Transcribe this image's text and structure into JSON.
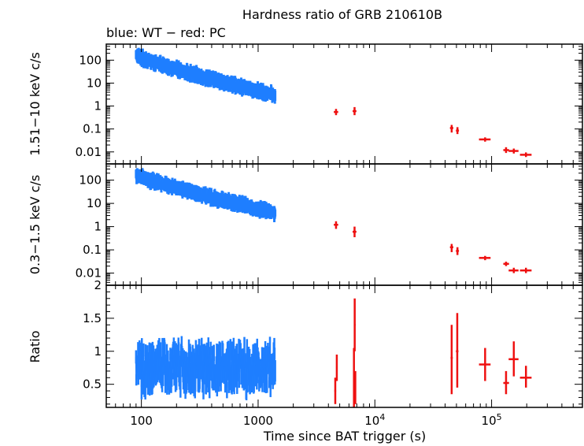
{
  "title": "Hardness ratio of GRB 210610B",
  "subtitle": "blue: WT − red: PC",
  "colors": {
    "wt": "#1f7fff",
    "pc": "#ee1111",
    "axis": "#000000"
  },
  "chart_data": [
    {
      "type": "scatter",
      "panel": "hard",
      "ylabel": "1.51−10 keV c/s",
      "yscale": "log",
      "ylim": [
        0.003,
        500
      ],
      "xscale": "log",
      "xlim": [
        50,
        600000
      ],
      "y_ticks": [
        "100",
        "10",
        "1",
        "0.1",
        "0.01"
      ],
      "wt": {
        "t_start": 90,
        "t_end": 1400,
        "y_start": 160,
        "y_end": 3,
        "scatter_frac": 0.35
      },
      "pc_points": [
        {
          "x": 4650,
          "xerr": [
            4450,
            4850
          ],
          "y": 0.55,
          "yerr": [
            0.4,
            0.75
          ]
        },
        {
          "x": 6700,
          "xerr": [
            6450,
            6950
          ],
          "y": 0.6,
          "yerr": [
            0.4,
            0.9
          ]
        },
        {
          "x": 45500,
          "xerr": [
            44000,
            47000
          ],
          "y": 0.11,
          "yerr": [
            0.07,
            0.15
          ]
        },
        {
          "x": 51000,
          "xerr": [
            49500,
            52500
          ],
          "y": 0.085,
          "yerr": [
            0.06,
            0.12
          ]
        },
        {
          "x": 88000,
          "xerr": [
            78000,
            98000
          ],
          "y": 0.035,
          "yerr": [
            0.028,
            0.043
          ]
        },
        {
          "x": 133000,
          "xerr": [
            126000,
            141000
          ],
          "y": 0.012,
          "yerr": [
            0.009,
            0.016
          ]
        },
        {
          "x": 155000,
          "xerr": [
            140000,
            170000
          ],
          "y": 0.011,
          "yerr": [
            0.0085,
            0.014
          ]
        },
        {
          "x": 197000,
          "xerr": [
            175000,
            220000
          ],
          "y": 0.0075,
          "yerr": [
            0.006,
            0.0095
          ]
        }
      ]
    },
    {
      "type": "scatter",
      "panel": "soft",
      "ylabel": "0.3−1.5 keV c/s",
      "yscale": "log",
      "ylim": [
        0.003,
        500
      ],
      "xscale": "log",
      "xlim": [
        50,
        600000
      ],
      "y_ticks": [
        "100",
        "10",
        "1",
        "0.1",
        "0.01"
      ],
      "wt": {
        "t_start": 90,
        "t_end": 1400,
        "y_start": 170,
        "y_end": 4,
        "scatter_frac": 0.35
      },
      "pc_points": [
        {
          "x": 4650,
          "xerr": [
            4450,
            4850
          ],
          "y": 1.2,
          "yerr": [
            0.8,
            1.7
          ]
        },
        {
          "x": 6700,
          "xerr": [
            6450,
            6950
          ],
          "y": 0.6,
          "yerr": [
            0.35,
            1.0
          ]
        },
        {
          "x": 45500,
          "xerr": [
            44000,
            47000
          ],
          "y": 0.13,
          "yerr": [
            0.08,
            0.18
          ]
        },
        {
          "x": 51000,
          "xerr": [
            49500,
            52500
          ],
          "y": 0.09,
          "yerr": [
            0.06,
            0.13
          ]
        },
        {
          "x": 88000,
          "xerr": [
            78000,
            98000
          ],
          "y": 0.045,
          "yerr": [
            0.036,
            0.055
          ]
        },
        {
          "x": 133000,
          "xerr": [
            126000,
            141000
          ],
          "y": 0.025,
          "yerr": [
            0.02,
            0.031
          ]
        },
        {
          "x": 155000,
          "xerr": [
            140000,
            170000
          ],
          "y": 0.013,
          "yerr": [
            0.01,
            0.017
          ]
        },
        {
          "x": 197000,
          "xerr": [
            175000,
            220000
          ],
          "y": 0.013,
          "yerr": [
            0.01,
            0.017
          ]
        }
      ]
    },
    {
      "type": "scatter",
      "panel": "ratio",
      "ylabel": "Ratio",
      "yscale": "linear",
      "ylim": [
        0.15,
        2
      ],
      "xscale": "log",
      "xlim": [
        50,
        600000
      ],
      "xlabel": "Time since BAT trigger (s)",
      "y_ticks": [
        "2",
        "1.5",
        "1",
        "0.5"
      ],
      "x_ticks": [
        {
          "value": 100,
          "label": "100"
        },
        {
          "value": 1000,
          "label": "1000"
        },
        {
          "value": 10000,
          "base": "10",
          "exp": "4"
        },
        {
          "value": 100000,
          "base": "10",
          "exp": "5"
        }
      ],
      "wt": {
        "t_start": 90,
        "t_end": 1400,
        "mean": 0.75,
        "spread": 0.3,
        "ymin": 0.25,
        "ymax": 1.45
      },
      "pc_points": [
        {
          "x": 4580,
          "xerr": [
            4500,
            4660
          ],
          "y": 0.4,
          "yerr": [
            0.2,
            0.6
          ]
        },
        {
          "x": 4720,
          "xerr": [
            4650,
            4790
          ],
          "y": 0.75,
          "yerr": [
            0.55,
            0.95
          ]
        },
        {
          "x": 6720,
          "xerr": [
            6600,
            6840
          ],
          "y": 1.4,
          "yerr": [
            1.0,
            1.8
          ]
        },
        {
          "x": 6620,
          "xerr": [
            6500,
            6740
          ],
          "y": 0.6,
          "yerr": [
            0.15,
            1.05
          ]
        },
        {
          "x": 6800,
          "xerr": [
            6700,
            6900
          ],
          "y": 0.45,
          "yerr": [
            0.2,
            0.7
          ]
        },
        {
          "x": 45500,
          "xerr": [
            44500,
            46500
          ],
          "y": 0.9,
          "yerr": [
            0.35,
            1.4
          ]
        },
        {
          "x": 50800,
          "xerr": [
            49500,
            52000
          ],
          "y": 1.0,
          "yerr": [
            0.45,
            1.58
          ]
        },
        {
          "x": 88000,
          "xerr": [
            78000,
            98000
          ],
          "y": 0.8,
          "yerr": [
            0.55,
            1.05
          ]
        },
        {
          "x": 133000,
          "xerr": [
            126000,
            141000
          ],
          "y": 0.52,
          "yerr": [
            0.35,
            0.7
          ]
        },
        {
          "x": 155000,
          "xerr": [
            140000,
            170000
          ],
          "y": 0.88,
          "yerr": [
            0.62,
            1.15
          ]
        },
        {
          "x": 197000,
          "xerr": [
            175000,
            220000
          ],
          "y": 0.6,
          "yerr": [
            0.45,
            0.78
          ]
        }
      ]
    }
  ]
}
